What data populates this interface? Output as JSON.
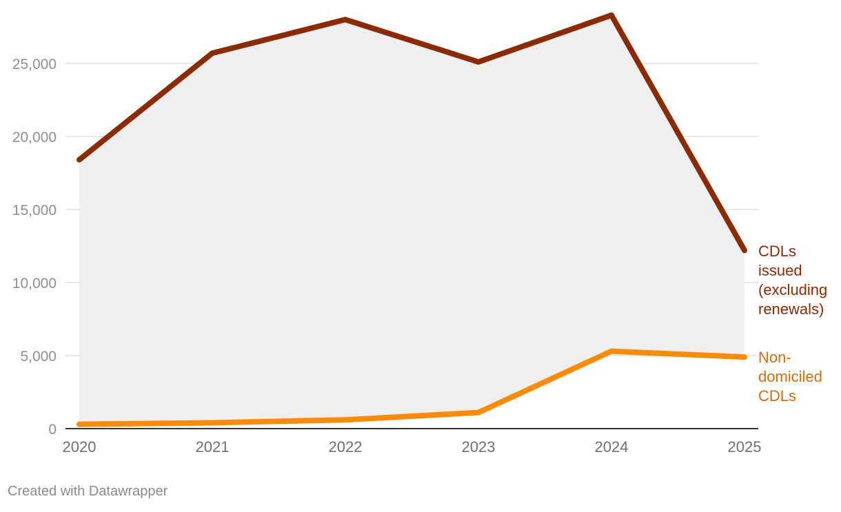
{
  "chart_data": {
    "type": "line",
    "title": "",
    "xlabel": "",
    "ylabel": "",
    "categories": [
      "2020",
      "2021",
      "2022",
      "2023",
      "2024",
      "2025"
    ],
    "ylim": [
      0,
      28000
    ],
    "yticks": [
      0,
      5000,
      10000,
      15000,
      20000,
      25000
    ],
    "ytick_labels": [
      "0",
      "5,000",
      "10,000",
      "15,000",
      "20,000",
      "25,000"
    ],
    "grid": true,
    "shaded_area_between_series": true,
    "series": [
      {
        "name": "CDLs issued (excluding renewals)",
        "label_lines": [
          "CDLs",
          "issued",
          "(excluding",
          "renewals)"
        ],
        "color": "#8a2b06",
        "label_color": "#8a2b06",
        "values": [
          18400,
          25700,
          28000,
          25100,
          28300,
          12200
        ]
      },
      {
        "name": "Non-domiciled CDLs",
        "label_lines": [
          "Non-",
          "domiciled",
          "CDLs"
        ],
        "color": "#f98b0b",
        "label_color": "#d9690a",
        "values": [
          300,
          400,
          600,
          1100,
          5300,
          4900
        ]
      }
    ],
    "area_color": "#efefef"
  },
  "footer": {
    "credit": "Created with Datawrapper"
  }
}
